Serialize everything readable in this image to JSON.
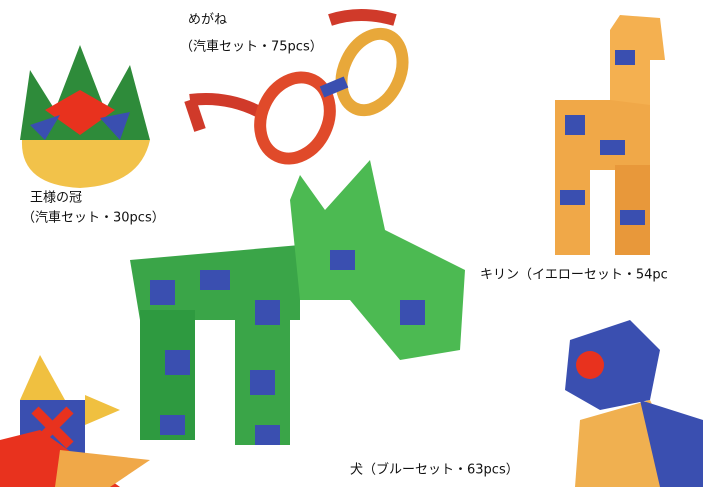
{
  "items": [
    {
      "name": "めがね",
      "set": "（汽車セット・75pcs）"
    },
    {
      "name": "王様の冠",
      "set": "（汽車セット・30pcs）"
    },
    {
      "caption": "キリン（イエローセット・54pc"
    },
    {
      "caption": "犬（ブルーセット・63pcs）"
    }
  ]
}
